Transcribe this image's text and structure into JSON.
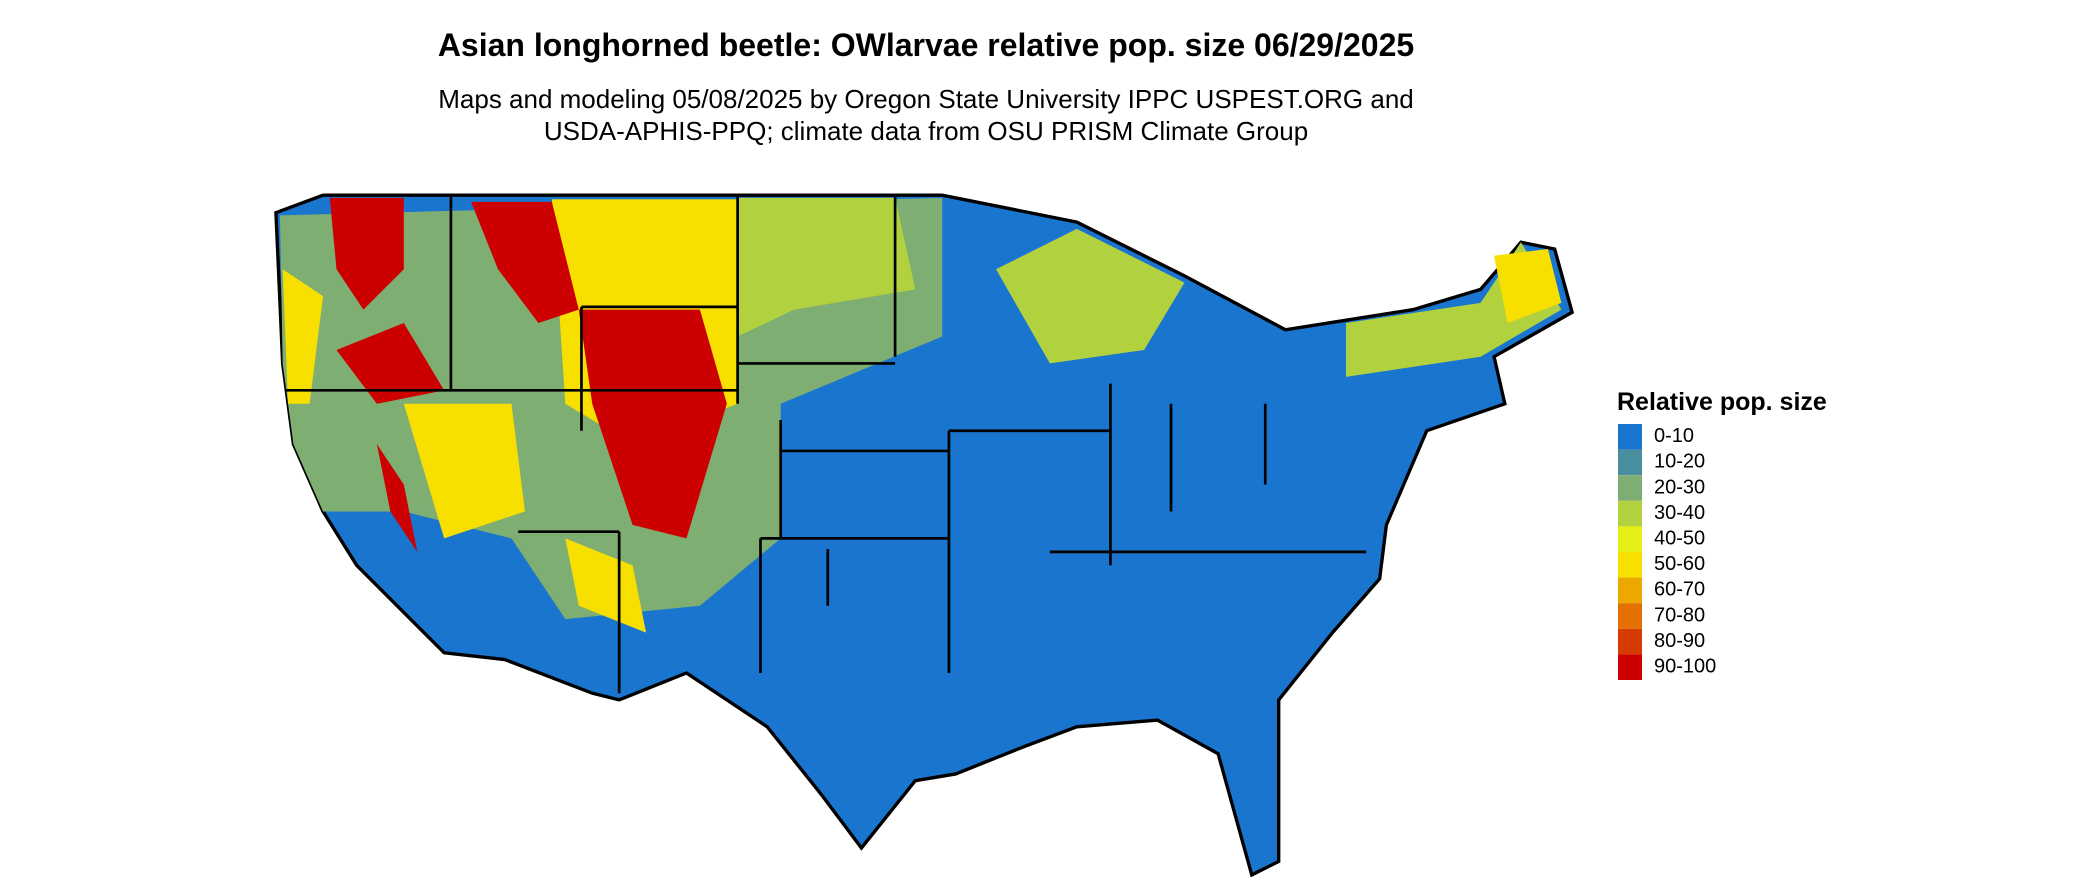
{
  "title": "Asian longhorned beetle: OWlarvae relative pop. size 06/29/2025",
  "subtitle": [
    "Maps and modeling 05/08/2025 by Oregon State University IPPC USPEST.ORG and",
    "USDA-APHIS-PPQ; climate data from OSU PRISM Climate Group"
  ],
  "legend": {
    "title": "Relative pop. size",
    "items": [
      {
        "label": "0-10",
        "color": "#1a75cf"
      },
      {
        "label": "10-20",
        "color": "#4a8fa0"
      },
      {
        "label": "20-30",
        "color": "#7fae73"
      },
      {
        "label": "30-40",
        "color": "#b2d13f"
      },
      {
        "label": "40-50",
        "color": "#e5ef16"
      },
      {
        "label": "50-60",
        "color": "#f7df00"
      },
      {
        "label": "60-70",
        "color": "#eda800"
      },
      {
        "label": "70-80",
        "color": "#e37000"
      },
      {
        "label": "80-90",
        "color": "#d63c00"
      },
      {
        "label": "90-100",
        "color": "#cc0000"
      }
    ]
  }
}
